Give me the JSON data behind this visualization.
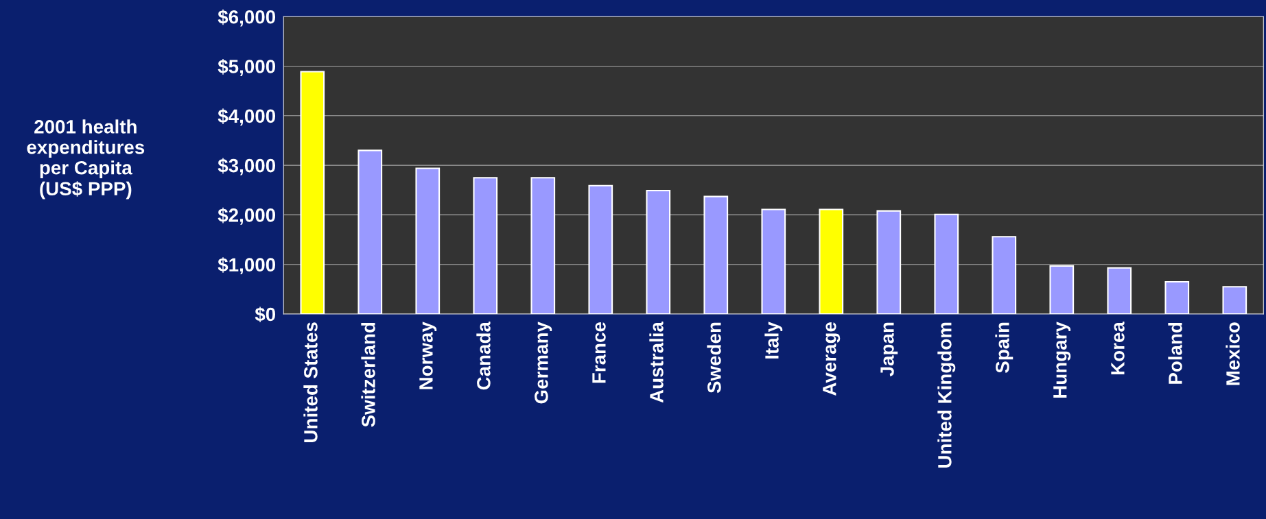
{
  "chart_data": {
    "type": "bar",
    "ylabel": "2001 health\nexpenditures\nper Capita\n(US$ PPP)",
    "categories": [
      "United States",
      "Switzerland",
      "Norway",
      "Canada",
      "Germany",
      "France",
      "Australia",
      "Sweden",
      "Italy",
      "Average",
      "Japan",
      "United Kingdom",
      "Spain",
      "Hungary",
      "Korea",
      "Poland",
      "Mexico"
    ],
    "values": [
      4890,
      3300,
      2940,
      2750,
      2750,
      2590,
      2490,
      2370,
      2110,
      2110,
      2080,
      2010,
      1560,
      970,
      930,
      650,
      550
    ],
    "colors": [
      "#ffff00",
      "#9999ff",
      "#9999ff",
      "#9999ff",
      "#9999ff",
      "#9999ff",
      "#9999ff",
      "#9999ff",
      "#9999ff",
      "#ffff00",
      "#9999ff",
      "#9999ff",
      "#9999ff",
      "#9999ff",
      "#9999ff",
      "#9999ff",
      "#9999ff"
    ],
    "ylim": [
      0,
      6000
    ],
    "yticks": [
      {
        "value": 0,
        "label": "$0"
      },
      {
        "value": 1000,
        "label": "$1,000"
      },
      {
        "value": 2000,
        "label": "$2,000"
      },
      {
        "value": 3000,
        "label": "$3,000"
      },
      {
        "value": 4000,
        "label": "$4,000"
      },
      {
        "value": 5000,
        "label": "$5,000"
      },
      {
        "value": 6000,
        "label": "$6,000"
      }
    ],
    "grid": "y"
  }
}
